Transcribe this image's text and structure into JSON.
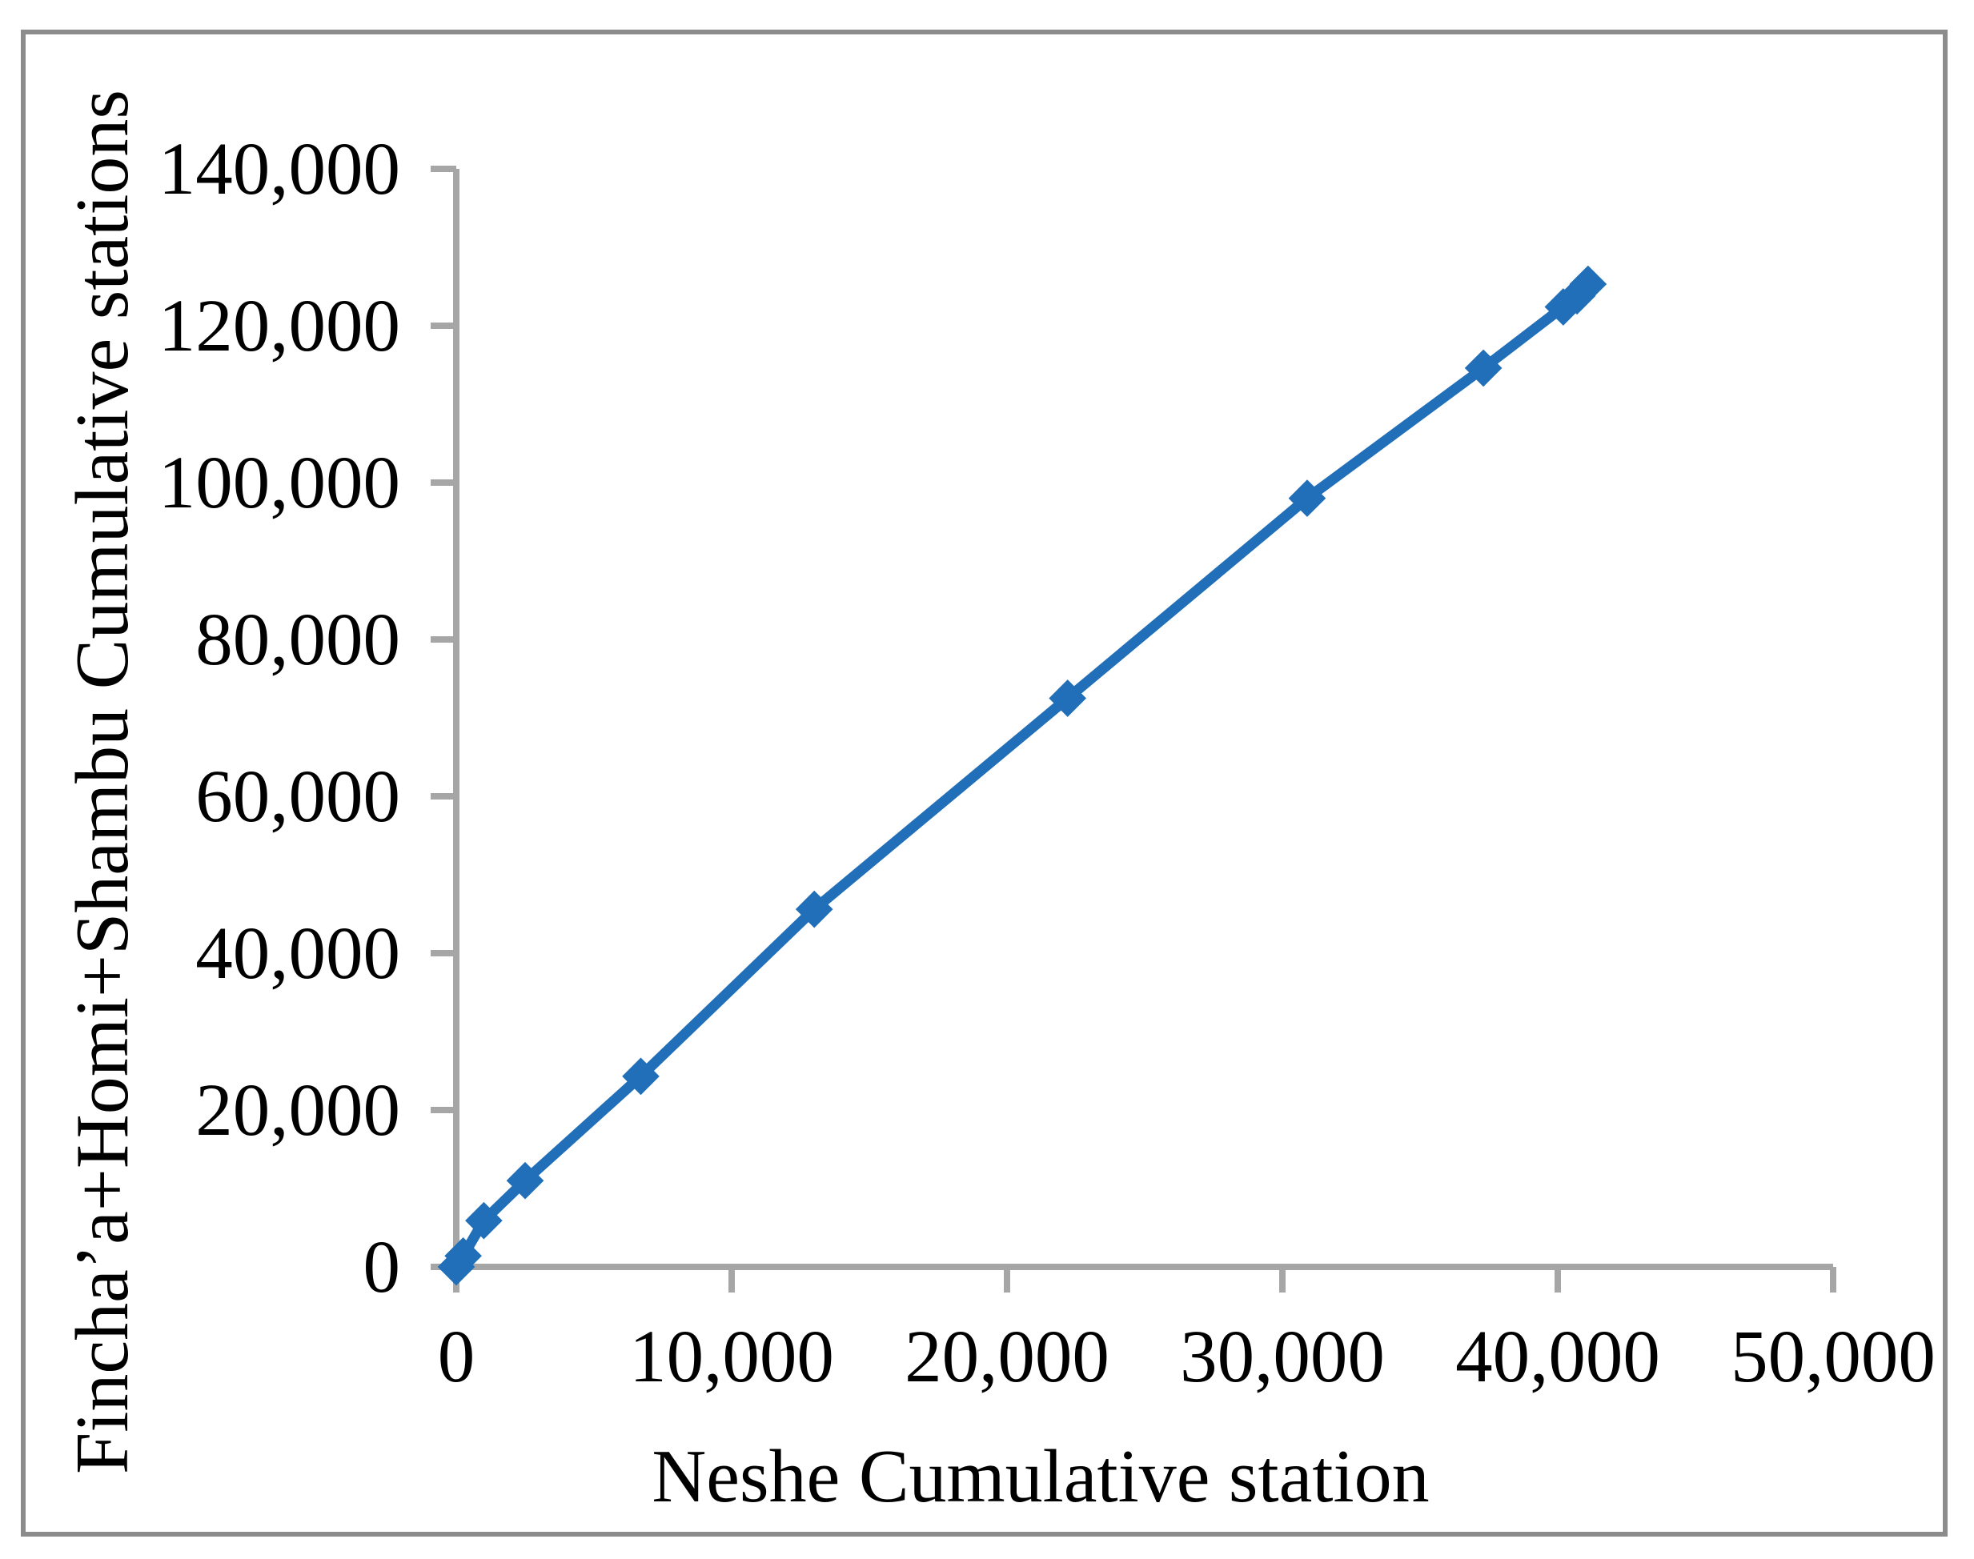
{
  "chart_data": {
    "type": "line",
    "title": "",
    "xlabel": "Neshe Cumulative station",
    "ylabel": "Fincha’a+Homi+Shambu Cumulative stations",
    "xlim": [
      0,
      50000
    ],
    "ylim": [
      0,
      140000
    ],
    "x_ticks": [
      0,
      10000,
      20000,
      30000,
      40000,
      50000
    ],
    "x_tick_labels": [
      "0",
      "10,000",
      "20,000",
      "30,000",
      "40,000",
      "50,000"
    ],
    "y_ticks": [
      0,
      20000,
      40000,
      60000,
      80000,
      100000,
      120000,
      140000
    ],
    "y_tick_labels": [
      "0",
      "20,000",
      "40,000",
      "60,000",
      "80,000",
      "100,000",
      "120,000",
      "140,000"
    ],
    "grid": false,
    "legend": false,
    "marker": "diamond",
    "points": [
      [
        0,
        0
      ],
      [
        250,
        1400
      ],
      [
        1000,
        5900
      ],
      [
        2500,
        11000
      ],
      [
        6700,
        24300
      ],
      [
        13000,
        45600
      ],
      [
        22200,
        72500
      ],
      [
        30900,
        98000
      ],
      [
        37300,
        114600
      ],
      [
        40200,
        122400
      ],
      [
        40700,
        123800
      ],
      [
        41100,
        125300
      ]
    ],
    "line_color": "#216FB8",
    "axis_color": "#A6A6A6",
    "border_color": "#8C8C8C",
    "text_color": "#000000"
  }
}
